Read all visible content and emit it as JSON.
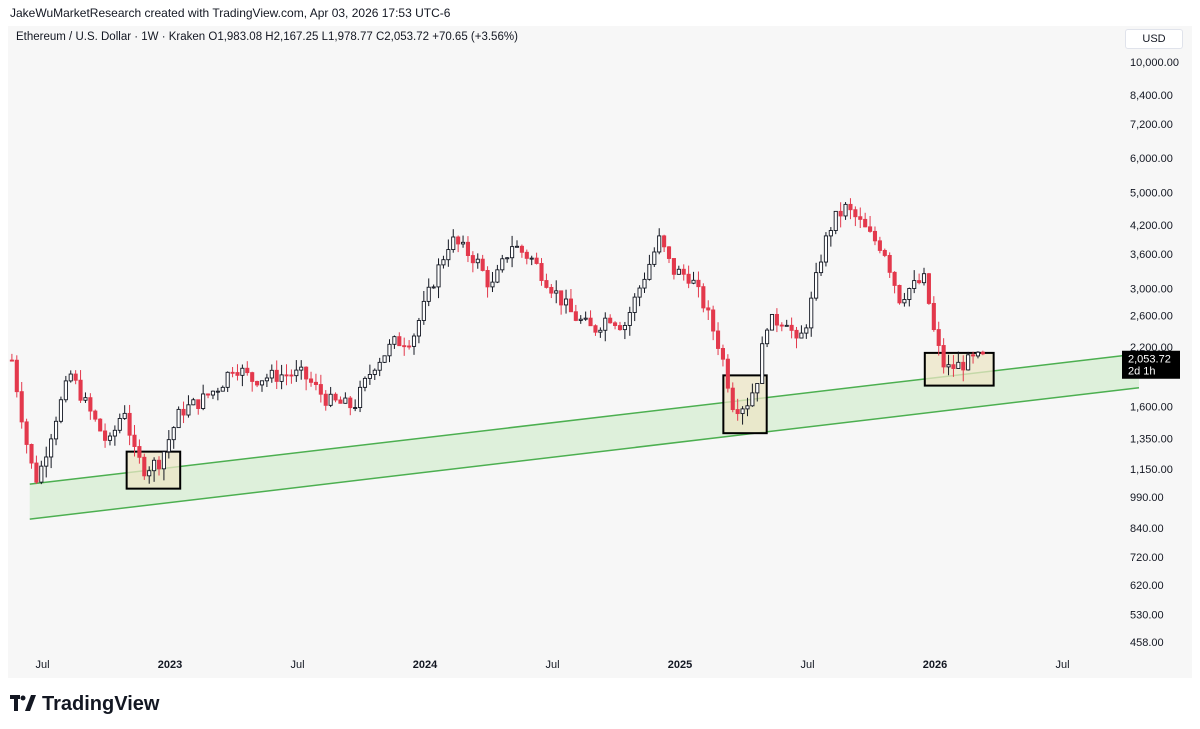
{
  "header": {
    "attribution": "JakeWuMarketResearch created with TradingView.com, Apr 03, 2026 17:53 UTC-6"
  },
  "legend": {
    "symbol": "Ethereum / U.S. Dollar · 1W · Kraken",
    "open": "O1,983.08",
    "high": "H2,167.25",
    "low": "L1,978.77",
    "close": "C2,053.72",
    "change": "+70.65 (+3.56%)"
  },
  "currency_label": "USD",
  "last_price": {
    "value": "2,053.72",
    "countdown": "2d 1h"
  },
  "footer": {
    "brand": "TradingView"
  },
  "colors": {
    "up": "#131722",
    "down": "#e3394c",
    "channel_line": "#4caf50",
    "channel_fill": "#d7edd3",
    "box_fill": "#ece5c6"
  },
  "chart_data": {
    "type": "candlestick",
    "title": "Ethereum / U.S. Dollar · 1W · Kraken",
    "scale": "log",
    "ylim": [
      420,
      11200
    ],
    "y_ticks": [
      "10,000.00",
      "8,400.00",
      "7,200.00",
      "6,000.00",
      "5,000.00",
      "4,200.00",
      "3,600.00",
      "3,000.00",
      "2,600.00",
      "2,200.00",
      "1,600.00",
      "1,350.00",
      "1,150.00",
      "990.00",
      "840.00",
      "720.00",
      "620.00",
      "530.00",
      "458.00"
    ],
    "y_tick_values": [
      10000,
      8400,
      7200,
      6000,
      5000,
      4200,
      3600,
      3000,
      2600,
      2200,
      1600,
      1350,
      1150,
      990,
      840,
      720,
      620,
      530,
      458
    ],
    "x_ticks": [
      {
        "label": "Jul",
        "t": 2022.5,
        "bold": false
      },
      {
        "label": "2023",
        "t": 2023.0,
        "bold": true
      },
      {
        "label": "Jul",
        "t": 2023.5,
        "bold": false
      },
      {
        "label": "2024",
        "t": 2024.0,
        "bold": true
      },
      {
        "label": "Jul",
        "t": 2024.5,
        "bold": false
      },
      {
        "label": "2025",
        "t": 2025.0,
        "bold": true
      },
      {
        "label": "Jul",
        "t": 2025.5,
        "bold": false
      },
      {
        "label": "2026",
        "t": 2026.0,
        "bold": true
      },
      {
        "label": "Jul",
        "t": 2026.5,
        "bold": false
      }
    ],
    "xlim": [
      2022.38,
      2026.8
    ],
    "channel": {
      "upper": [
        {
          "t": 2022.45,
          "p": 1060
        },
        {
          "t": 2026.8,
          "p": 2120
        }
      ],
      "lower": [
        {
          "t": 2022.45,
          "p": 880
        },
        {
          "t": 2026.8,
          "p": 1770
        }
      ]
    },
    "boxes": [
      {
        "t0": 2022.83,
        "t1": 2023.04,
        "p_low": 1035,
        "p_high": 1260
      },
      {
        "t0": 2025.17,
        "t1": 2025.34,
        "p_low": 1390,
        "p_high": 1890
      },
      {
        "t0": 2025.96,
        "t1": 2026.23,
        "p_low": 1790,
        "p_high": 2130
      }
    ],
    "anchors": [
      {
        "t": 2022.38,
        "p": 2050
      },
      {
        "t": 2022.45,
        "p": 1200
      },
      {
        "t": 2022.48,
        "p": 1080
      },
      {
        "t": 2022.55,
        "p": 1500
      },
      {
        "t": 2022.61,
        "p": 1900
      },
      {
        "t": 2022.68,
        "p": 1580
      },
      {
        "t": 2022.76,
        "p": 1300
      },
      {
        "t": 2022.82,
        "p": 1600
      },
      {
        "t": 2022.86,
        "p": 1250
      },
      {
        "t": 2022.9,
        "p": 1150
      },
      {
        "t": 2022.96,
        "p": 1200
      },
      {
        "t": 2023.04,
        "p": 1560
      },
      {
        "t": 2023.12,
        "p": 1650
      },
      {
        "t": 2023.2,
        "p": 1800
      },
      {
        "t": 2023.25,
        "p": 2000
      },
      {
        "t": 2023.32,
        "p": 1850
      },
      {
        "t": 2023.45,
        "p": 1900
      },
      {
        "t": 2023.52,
        "p": 1900
      },
      {
        "t": 2023.62,
        "p": 1650
      },
      {
        "t": 2023.72,
        "p": 1600
      },
      {
        "t": 2023.8,
        "p": 2000
      },
      {
        "t": 2023.88,
        "p": 2250
      },
      {
        "t": 2023.95,
        "p": 2300
      },
      {
        "t": 2024.04,
        "p": 3200
      },
      {
        "t": 2024.1,
        "p": 3900
      },
      {
        "t": 2024.2,
        "p": 3500
      },
      {
        "t": 2024.26,
        "p": 3000
      },
      {
        "t": 2024.34,
        "p": 3800
      },
      {
        "t": 2024.42,
        "p": 3500
      },
      {
        "t": 2024.5,
        "p": 3000
      },
      {
        "t": 2024.58,
        "p": 2600
      },
      {
        "t": 2024.66,
        "p": 2400
      },
      {
        "t": 2024.72,
        "p": 2600
      },
      {
        "t": 2024.78,
        "p": 2450
      },
      {
        "t": 2024.84,
        "p": 3000
      },
      {
        "t": 2024.92,
        "p": 3900
      },
      {
        "t": 2024.97,
        "p": 3300
      },
      {
        "t": 2025.04,
        "p": 3200
      },
      {
        "t": 2025.1,
        "p": 2700
      },
      {
        "t": 2025.16,
        "p": 2150
      },
      {
        "t": 2025.21,
        "p": 1600
      },
      {
        "t": 2025.26,
        "p": 1620
      },
      {
        "t": 2025.3,
        "p": 1820
      },
      {
        "t": 2025.34,
        "p": 2500
      },
      {
        "t": 2025.42,
        "p": 2550
      },
      {
        "t": 2025.46,
        "p": 2200
      },
      {
        "t": 2025.5,
        "p": 2550
      },
      {
        "t": 2025.56,
        "p": 3700
      },
      {
        "t": 2025.6,
        "p": 4300
      },
      {
        "t": 2025.65,
        "p": 4600
      },
      {
        "t": 2025.7,
        "p": 4300
      },
      {
        "t": 2025.74,
        "p": 4000
      },
      {
        "t": 2025.8,
        "p": 3700
      },
      {
        "t": 2025.86,
        "p": 2850
      },
      {
        "t": 2025.9,
        "p": 3000
      },
      {
        "t": 2025.96,
        "p": 3150
      },
      {
        "t": 2026.0,
        "p": 2300
      },
      {
        "t": 2026.04,
        "p": 1950
      },
      {
        "t": 2026.1,
        "p": 2000
      },
      {
        "t": 2026.18,
        "p": 2080
      },
      {
        "t": 2026.2,
        "p": 2053
      }
    ]
  }
}
